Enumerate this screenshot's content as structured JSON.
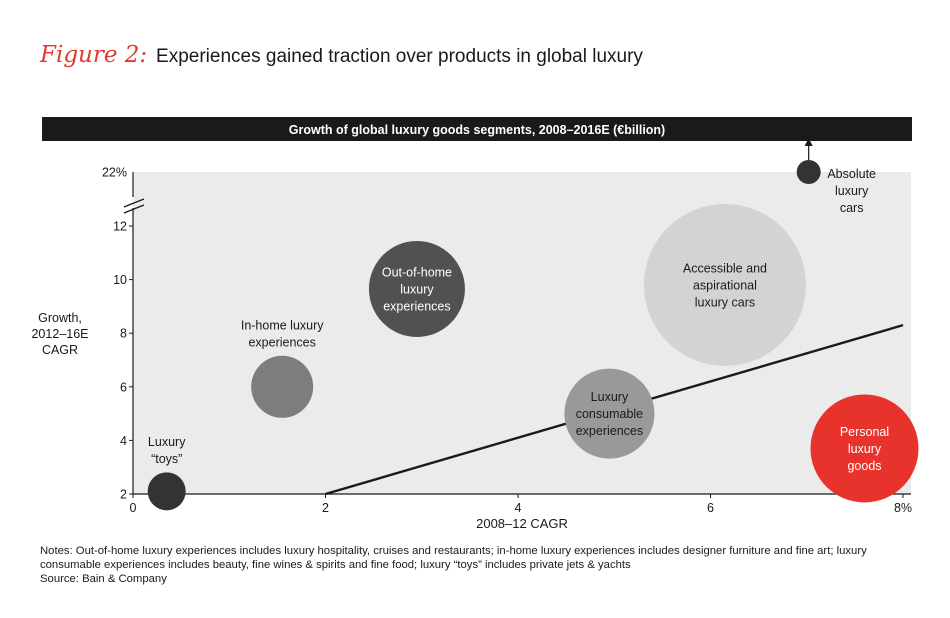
{
  "figure": {
    "label": "Figure 2:",
    "title": "Experiences gained traction over products in global luxury"
  },
  "chart_data": {
    "type": "bubble",
    "title": "Growth of global luxury goods segments, 2008–2016E (€billion)",
    "xlabel": "2008–12 CAGR",
    "ylabel": [
      "Growth,",
      "2012–16E",
      "CAGR"
    ],
    "xlim": [
      0,
      8
    ],
    "ylim": [
      2,
      13.5
    ],
    "x_ticks": [
      0,
      2,
      4,
      6,
      8
    ],
    "x_tick_labels": [
      "0",
      "2",
      "4",
      "6",
      "8%"
    ],
    "y_ticks": [
      2,
      4,
      6,
      8,
      10,
      12
    ],
    "y_tick_labels": [
      "2",
      "4",
      "6",
      "8",
      "10",
      "12"
    ],
    "axis_break": {
      "label": "22%",
      "note": "y-axis broken between 12 and 22%"
    },
    "trend_line": {
      "x": [
        2,
        8
      ],
      "y": [
        2,
        8.3
      ]
    },
    "bubbles": [
      {
        "name": "Luxury “toys”",
        "lines": [
          "Luxury",
          "“toys”"
        ],
        "x": 0.35,
        "y": 2.1,
        "size": 19,
        "color": "#333333",
        "label_color": "#1a1a1a",
        "label_pos": "above"
      },
      {
        "name": "In-home luxury experiences",
        "lines": [
          "In-home luxury",
          "experiences"
        ],
        "x": 1.55,
        "y": 6.0,
        "size": 31,
        "color": "#7d7d7d",
        "label_color": "#1a1a1a",
        "label_pos": "above"
      },
      {
        "name": "Out-of-home luxury experiences",
        "lines": [
          "Out-of-home",
          "luxury",
          "experiences"
        ],
        "x": 2.95,
        "y": 9.65,
        "size": 48,
        "color": "#515151",
        "label_color": "#ffffff",
        "label_pos": "inside"
      },
      {
        "name": "Luxury consumable experiences",
        "lines": [
          "Luxury",
          "consumable",
          "experiences"
        ],
        "x": 4.95,
        "y": 5.0,
        "size": 45,
        "color": "#999999",
        "label_color": "#1a1a1a",
        "label_pos": "inside"
      },
      {
        "name": "Accessible and aspirational luxury cars",
        "lines": [
          "Accessible and",
          "aspirational",
          "luxury cars"
        ],
        "x": 6.15,
        "y": 9.8,
        "size": 81,
        "color": "#d3d3d3",
        "label_color": "#1a1a1a",
        "label_pos": "inside"
      },
      {
        "name": "Personal luxury goods",
        "lines": [
          "Personal",
          "luxury",
          "goods"
        ],
        "x": 7.6,
        "y": 3.7,
        "size": 54,
        "color": "#e8322c",
        "label_color": "#ffffff",
        "label_pos": "inside"
      },
      {
        "name": "Absolute luxury cars",
        "lines": [
          "Absolute",
          "luxury",
          "cars"
        ],
        "x": 7.02,
        "y": 22,
        "size": 12,
        "color": "#333333",
        "label_color": "#1a1a1a",
        "label_pos": "right",
        "arrow_up": true
      }
    ]
  },
  "notes": {
    "text": "Notes: Out-of-home luxury experiences includes luxury hospitality, cruises and restaurants; in-home luxury experiences includes designer furniture and fine art; luxury consumable experiences includes beauty, fine wines & spirits and fine food; luxury “toys” includes private jets & yachts",
    "source": "Source: Bain & Company"
  },
  "colors": {
    "title_accent": "#e03a2f",
    "plot_background": "#ebebeb",
    "header_bar": "#1a1a1a"
  }
}
